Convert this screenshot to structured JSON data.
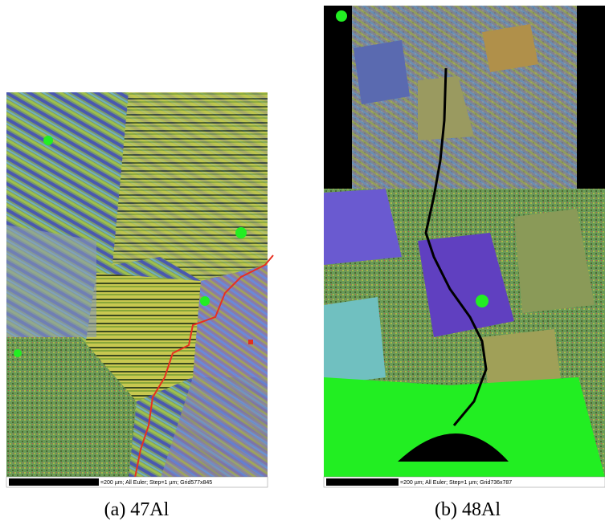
{
  "figure": {
    "panels": [
      {
        "scale_bar_text": "=200 µm; All Euler; Step=1 µm; Grid577x845",
        "caption": "(a) 47Al"
      },
      {
        "scale_bar_text": "=200 µm; All Euler; Step=1 µm; Grid736x787",
        "caption": "(b) 48Al"
      }
    ]
  }
}
